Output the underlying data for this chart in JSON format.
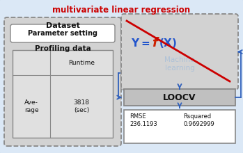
{
  "title": "multivariate linear regression",
  "title_color": "#cc0000",
  "outer_bg": "#dbe8f6",
  "left_inner_bg": "#d2d2d2",
  "model_box_bg": "#d2d2d2",
  "loocv_bg": "#c0c0c0",
  "results_bg": "#ffffff",
  "param_setting_bg": "#ffffff",
  "dataset_label": "Dataset",
  "param_label": "Parameter setting",
  "profiling_label": "Profiling data",
  "table_col_header": "Runtime",
  "table_row_label": "Ave-\nrage",
  "table_value": "3818\n(sec)",
  "machine_learning": "Machine\nlearning",
  "loocv_label": "LOOCV",
  "rmse_label": "RMSE",
  "rsq_label": "Rsquared",
  "rmse_value": "236.1193",
  "rsq_value": "0.9692999",
  "arrow_color": "#3060bb",
  "crossout_color": "#cc0000",
  "formula_blue": "#2255cc",
  "formula_red": "#cc2200",
  "machine_learning_color": "#a8bfd8"
}
